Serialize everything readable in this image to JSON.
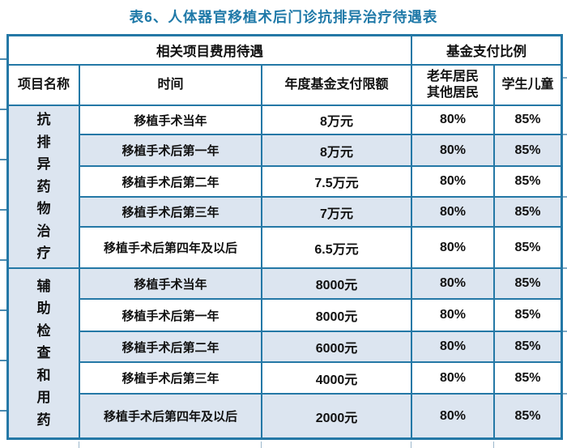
{
  "title": "表6、人体器官移植术后门诊抗排异治疗待遇表",
  "headers": {
    "fee_group": "相关项目费用待遇",
    "ratio_group": "基金支付比例",
    "col_project": "项目名称",
    "col_time": "时间",
    "col_limit": "年度基金支付限额",
    "col_elderly_line1": "老年居民",
    "col_elderly_line2": "其他居民",
    "col_student": "学生儿童"
  },
  "groups": [
    {
      "label": "抗排异药物治疗",
      "rows": [
        {
          "time": "移植手术当年",
          "limit": "8万元",
          "elderly": "80%",
          "student": "85%"
        },
        {
          "time": "移植手术后第一年",
          "limit": "8万元",
          "elderly": "80%",
          "student": "85%"
        },
        {
          "time": "移植手术后第二年",
          "limit": "7.5万元",
          "elderly": "80%",
          "student": "85%"
        },
        {
          "time": "移植手术后第三年",
          "limit": "7万元",
          "elderly": "80%",
          "student": "85%"
        },
        {
          "time": "移植手术后第四年及以后",
          "limit": "6.5万元",
          "elderly": "80%",
          "student": "85%"
        }
      ]
    },
    {
      "label": "辅助检查和用药",
      "rows": [
        {
          "time": "移植手术当年",
          "limit": "8000元",
          "elderly": "80%",
          "student": "85%"
        },
        {
          "time": "移植手术后第一年",
          "limit": "8000元",
          "elderly": "80%",
          "student": "85%"
        },
        {
          "time": "移植手术后第二年",
          "limit": "6000元",
          "elderly": "80%",
          "student": "85%"
        },
        {
          "time": "移植手术后第三年",
          "limit": "4000元",
          "elderly": "80%",
          "student": "85%"
        },
        {
          "time": "移植手术后第四年及以后",
          "limit": "2000元",
          "elderly": "80%",
          "student": "85%"
        }
      ]
    }
  ],
  "colors": {
    "border": "#2478a6",
    "title_text": "#1f79a8",
    "row_alt": "#dce5f0",
    "body_text": "#111111"
  }
}
